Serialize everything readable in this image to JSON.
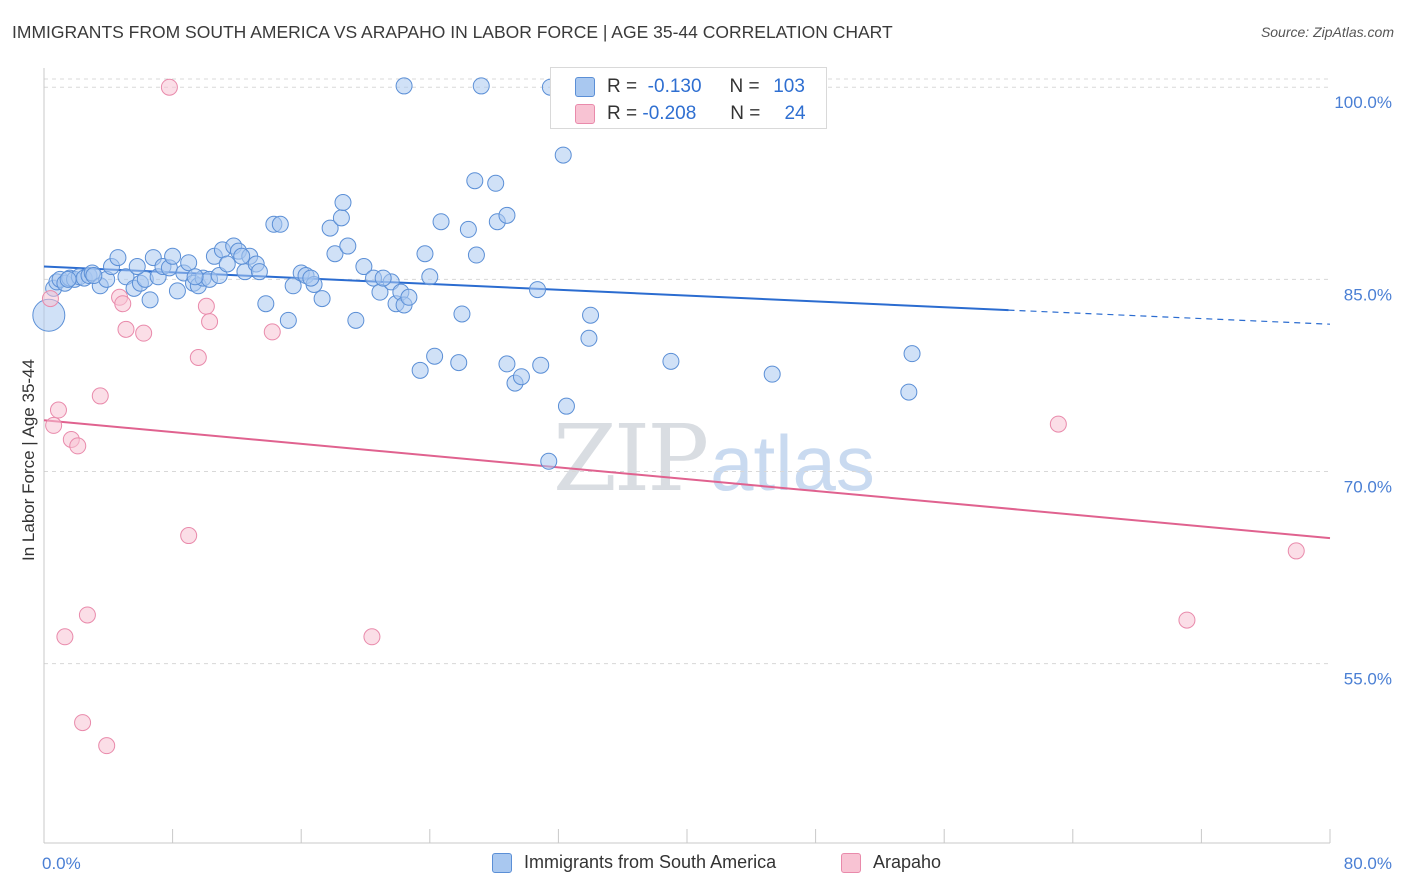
{
  "header": {
    "title": "IMMIGRANTS FROM SOUTH AMERICA VS ARAPAHO IN LABOR FORCE | AGE 35-44 CORRELATION CHART",
    "source": "Source: ZipAtlas.com"
  },
  "watermark": {
    "zip": "ZIP",
    "atlas": "atlas"
  },
  "stats_legend": {
    "rows": [
      {
        "r_label": "R =",
        "r_value": "-0.130",
        "n_label": "N =",
        "n_value": "103",
        "color": "#a9c8f0"
      },
      {
        "r_label": "R =",
        "r_value": "-0.208",
        "n_label": "N =",
        "n_value": "24",
        "color": "#f6b6cb"
      }
    ]
  },
  "legend": {
    "items": [
      {
        "label": "Immigrants from South America",
        "color": "#a9c8f0"
      },
      {
        "label": "Arapaho",
        "color": "#f6b6cb"
      }
    ]
  },
  "colors": {
    "blue_fill": "#a9c8f0",
    "blue_stroke": "#5b8fd6",
    "blue_line": "#2b6cd0",
    "pink_fill": "#f8c3d3",
    "pink_stroke": "#e98aab",
    "pink_line": "#e0628f",
    "tick_label": "#4a7fd4",
    "grid": "#d8d8d8"
  },
  "chart_data": {
    "type": "scatter",
    "title": "IMMIGRANTS FROM SOUTH AMERICA VS ARAPAHO IN LABOR FORCE | AGE 35-44 CORRELATION CHART",
    "xlabel": "",
    "ylabel": "In Labor Force | Age 35-44",
    "xlim": [
      0,
      80
    ],
    "ylim": [
      41,
      101.5
    ],
    "x_tick_labels": [
      "0.0%",
      "80.0%"
    ],
    "y_ticks": [
      100,
      85,
      70,
      55
    ],
    "y_tick_labels": [
      "100.0%",
      "85.0%",
      "70.0%",
      "55.0%"
    ],
    "grid": "horizontal dashed",
    "legend_position": "bottom",
    "series": [
      {
        "name": "Immigrants from South America",
        "r": -0.13,
        "n": 103,
        "trend": {
          "x": [
            0,
            60,
            80
          ],
          "y": [
            86.0,
            82.6,
            81.5
          ],
          "solid_until_x": 60
        },
        "points": [
          [
            0.3,
            82.2
          ],
          [
            0.6,
            84.3
          ],
          [
            0.8,
            84.8
          ],
          [
            1.0,
            85.0
          ],
          [
            1.3,
            84.7
          ],
          [
            1.6,
            85.1
          ],
          [
            1.9,
            85.0
          ],
          [
            2.2,
            85.2
          ],
          [
            2.5,
            85.1
          ],
          [
            2.8,
            85.3
          ],
          [
            3.0,
            85.5
          ],
          [
            3.5,
            84.5
          ],
          [
            3.9,
            85.0
          ],
          [
            4.2,
            86.0
          ],
          [
            4.6,
            86.7
          ],
          [
            5.1,
            85.2
          ],
          [
            5.6,
            84.3
          ],
          [
            6.0,
            84.7
          ],
          [
            6.3,
            85.0
          ],
          [
            6.6,
            83.4
          ],
          [
            6.8,
            86.7
          ],
          [
            7.1,
            85.2
          ],
          [
            7.4,
            86.0
          ],
          [
            7.8,
            85.9
          ],
          [
            8.0,
            86.8
          ],
          [
            8.3,
            84.1
          ],
          [
            8.7,
            85.5
          ],
          [
            9.0,
            86.3
          ],
          [
            9.3,
            84.7
          ],
          [
            9.6,
            84.5
          ],
          [
            9.9,
            85.1
          ],
          [
            10.3,
            85.0
          ],
          [
            10.6,
            86.8
          ],
          [
            10.9,
            85.3
          ],
          [
            11.1,
            87.3
          ],
          [
            11.4,
            86.2
          ],
          [
            11.8,
            87.6
          ],
          [
            12.1,
            87.2
          ],
          [
            12.5,
            85.6
          ],
          [
            12.8,
            86.8
          ],
          [
            13.2,
            86.2
          ],
          [
            13.4,
            85.6
          ],
          [
            13.8,
            83.1
          ],
          [
            14.3,
            89.3
          ],
          [
            14.7,
            89.3
          ],
          [
            15.2,
            81.8
          ],
          [
            15.5,
            84.5
          ],
          [
            16.0,
            85.5
          ],
          [
            16.3,
            85.3
          ],
          [
            16.8,
            84.6
          ],
          [
            17.3,
            83.5
          ],
          [
            17.8,
            89.0
          ],
          [
            18.1,
            87.0
          ],
          [
            18.5,
            89.8
          ],
          [
            18.6,
            91.0
          ],
          [
            18.9,
            87.6
          ],
          [
            19.4,
            81.8
          ],
          [
            19.9,
            86.0
          ],
          [
            20.5,
            85.1
          ],
          [
            20.9,
            84.0
          ],
          [
            21.6,
            84.8
          ],
          [
            21.9,
            83.1
          ],
          [
            22.2,
            84.0
          ],
          [
            22.4,
            83.0
          ],
          [
            22.7,
            83.6
          ],
          [
            23.4,
            77.9
          ],
          [
            23.7,
            87.0
          ],
          [
            24.3,
            79.0
          ],
          [
            24.7,
            89.5
          ],
          [
            25.8,
            78.5
          ],
          [
            26.0,
            82.3
          ],
          [
            26.4,
            88.9
          ],
          [
            26.8,
            92.7
          ],
          [
            26.9,
            86.9
          ],
          [
            28.1,
            92.5
          ],
          [
            28.2,
            89.5
          ],
          [
            28.8,
            78.4
          ],
          [
            28.8,
            90.0
          ],
          [
            29.3,
            76.9
          ],
          [
            29.7,
            77.4
          ],
          [
            30.7,
            84.2
          ],
          [
            30.9,
            78.3
          ],
          [
            31.4,
            70.8
          ],
          [
            22.4,
            100.1
          ],
          [
            27.2,
            100.1
          ],
          [
            31.5,
            100.0
          ],
          [
            32.3,
            94.7
          ],
          [
            32.5,
            75.1
          ],
          [
            34.0,
            82.2
          ],
          [
            33.9,
            80.4
          ],
          [
            35.9,
            100.0
          ],
          [
            39.0,
            78.6
          ],
          [
            45.3,
            77.6
          ],
          [
            53.8,
            76.2
          ],
          [
            54.0,
            79.2
          ],
          [
            1.5,
            85.0
          ],
          [
            3.1,
            85.3
          ],
          [
            5.8,
            86.0
          ],
          [
            9.4,
            85.2
          ],
          [
            12.3,
            86.8
          ],
          [
            16.6,
            85.1
          ],
          [
            21.1,
            85.1
          ],
          [
            24.0,
            85.2
          ]
        ]
      },
      {
        "name": "Arapaho",
        "r": -0.208,
        "n": 24,
        "trend": {
          "x": [
            0,
            80
          ],
          "y": [
            74.0,
            64.8
          ]
        },
        "points": [
          [
            0.4,
            83.5
          ],
          [
            0.6,
            73.6
          ],
          [
            0.9,
            74.8
          ],
          [
            1.3,
            57.1
          ],
          [
            1.7,
            72.5
          ],
          [
            2.1,
            72.0
          ],
          [
            2.4,
            50.4
          ],
          [
            2.7,
            58.8
          ],
          [
            3.5,
            75.9
          ],
          [
            3.9,
            48.6
          ],
          [
            4.7,
            83.6
          ],
          [
            4.9,
            83.1
          ],
          [
            5.1,
            81.1
          ],
          [
            6.2,
            80.8
          ],
          [
            7.8,
            100.0
          ],
          [
            9.0,
            65.0
          ],
          [
            9.6,
            78.9
          ],
          [
            10.1,
            82.9
          ],
          [
            10.3,
            81.7
          ],
          [
            14.2,
            80.9
          ],
          [
            20.4,
            57.1
          ],
          [
            63.1,
            73.7
          ],
          [
            71.1,
            58.4
          ],
          [
            77.9,
            63.8
          ]
        ]
      }
    ]
  }
}
